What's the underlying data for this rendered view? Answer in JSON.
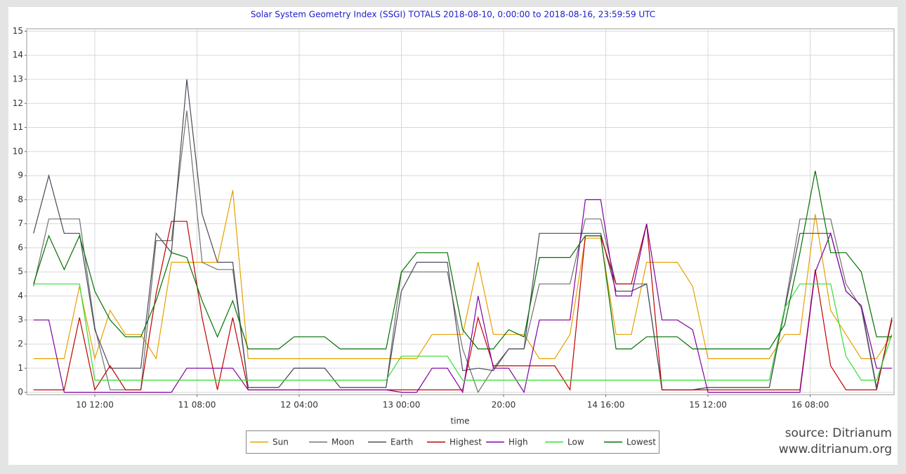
{
  "chart_data": {
    "type": "line",
    "title": "Solar System Geometry Index (SSGI) TOTALS 2018-08-10,  0:00:00 to 2018-08-16, 23:59:59 UTC",
    "x_label": "time",
    "source": [
      "source: Ditrianum",
      "www.ditrianum.org"
    ],
    "x": [
      "10 00:00",
      "10 03:00",
      "10 06:00",
      "10 09:00",
      "10 12:00",
      "10 15:00",
      "10 18:00",
      "10 21:00",
      "11 00:00",
      "11 03:00",
      "11 06:00",
      "11 09:00",
      "11 12:00",
      "11 15:00",
      "11 18:00",
      "11 21:00",
      "12 00:00",
      "12 03:00",
      "12 06:00",
      "12 09:00",
      "12 12:00",
      "12 15:00",
      "12 18:00",
      "12 21:00",
      "13 00:00",
      "13 03:00",
      "13 06:00",
      "13 09:00",
      "13 12:00",
      "13 15:00",
      "13 18:00",
      "13 21:00",
      "14 00:00",
      "14 03:00",
      "14 06:00",
      "14 09:00",
      "14 12:00",
      "14 15:00",
      "14 18:00",
      "14 21:00",
      "15 00:00",
      "15 03:00",
      "15 06:00",
      "15 09:00",
      "15 12:00",
      "15 15:00",
      "15 18:00",
      "15 21:00",
      "16 00:00",
      "16 03:00",
      "16 06:00",
      "16 09:00",
      "16 12:00",
      "16 15:00",
      "16 18:00",
      "16 21:00",
      "17 00:00"
    ],
    "xlim": [
      "09 22:40",
      "17 00:25"
    ],
    "xticks": [
      {
        "value": "10 12:00",
        "label": "10 12:00"
      },
      {
        "value": "11 08:00",
        "label": "11 08:00"
      },
      {
        "value": "12 04:00",
        "label": "12 04:00"
      },
      {
        "value": "13 00:00",
        "label": "13 00:00"
      },
      {
        "value": "13 20:00",
        "label": "20:00"
      },
      {
        "value": "14 16:00",
        "label": "14 16:00"
      },
      {
        "value": "15 12:00",
        "label": "15 12:00"
      },
      {
        "value": "16 08:00",
        "label": "16 08:00"
      }
    ],
    "ylim": [
      -0.1,
      15.1
    ],
    "yticks": [
      0,
      1,
      2,
      3,
      4,
      5,
      6,
      7,
      8,
      9,
      10,
      11,
      12,
      13,
      14,
      15
    ],
    "grid": true,
    "series": [
      {
        "name": "Sun",
        "color": "#e6a000",
        "values": [
          1.4,
          1.4,
          1.4,
          4.4,
          1.4,
          3.4,
          2.4,
          2.4,
          1.4,
          5.4,
          5.4,
          5.4,
          5.4,
          8.4,
          1.4,
          1.4,
          1.4,
          1.4,
          1.4,
          1.4,
          1.4,
          1.4,
          1.4,
          1.4,
          1.4,
          1.4,
          2.4,
          2.4,
          2.4,
          5.4,
          2.4,
          2.4,
          2.4,
          1.4,
          1.4,
          2.4,
          6.4,
          6.4,
          2.4,
          2.4,
          5.4,
          5.4,
          5.4,
          4.4,
          1.4,
          1.4,
          1.4,
          1.4,
          1.4,
          2.4,
          2.4,
          7.4,
          3.4,
          2.4,
          1.4,
          1.4,
          2.4
        ]
      },
      {
        "name": "Moon",
        "color": "#707070",
        "values": [
          4.4,
          7.2,
          7.2,
          7.2,
          2.7,
          0.1,
          0.1,
          0.1,
          6.3,
          6.3,
          11.7,
          5.4,
          5.1,
          5.1,
          0.2,
          0.2,
          0.2,
          1,
          1,
          1,
          0.2,
          0.2,
          0.2,
          0.2,
          5,
          5,
          5,
          5,
          1.8,
          0,
          1,
          1.8,
          1.8,
          4.5,
          4.5,
          4.5,
          7.2,
          7.2,
          4.5,
          4.5,
          4.5,
          0.1,
          0.1,
          0.1,
          0.2,
          0.2,
          0.2,
          0.2,
          0.2,
          3.5,
          7.2,
          7.2,
          7.2,
          4.5,
          3.5,
          0.1,
          3
        ]
      },
      {
        "name": "Earth",
        "color": "#4a4a5a",
        "values": [
          6.6,
          9,
          6.6,
          6.6,
          2.6,
          1,
          1,
          1,
          6.6,
          5.8,
          13,
          7.4,
          5.4,
          5.4,
          0.2,
          0.2,
          0.2,
          1,
          1,
          1,
          0.2,
          0.2,
          0.2,
          0.2,
          4.2,
          5.4,
          5.4,
          5.4,
          0.9,
          1,
          0.9,
          1.8,
          1.8,
          6.6,
          6.6,
          6.6,
          6.6,
          6.6,
          4.2,
          4.2,
          4.5,
          0.1,
          0.1,
          0.1,
          0.2,
          0.2,
          0.2,
          0.2,
          0.2,
          3.4,
          6.6,
          6.6,
          6.6,
          4.2,
          3.6,
          0.2,
          3
        ]
      },
      {
        "name": "Highest",
        "color": "#c00000",
        "values": [
          0.1,
          0.1,
          0.1,
          3.1,
          0.1,
          1.1,
          0.1,
          0.1,
          4.1,
          7.1,
          7.1,
          3.1,
          0.1,
          3.1,
          0.1,
          0.1,
          0.1,
          0.1,
          0.1,
          0.1,
          0.1,
          0.1,
          0.1,
          0.1,
          0.1,
          0.1,
          0.1,
          0.1,
          0.1,
          3.1,
          1.1,
          1.1,
          1.1,
          1.1,
          1.1,
          0.1,
          6.5,
          6.5,
          4.5,
          4.5,
          7,
          0.1,
          0.1,
          0.1,
          0.1,
          0.1,
          0.1,
          0.1,
          0.1,
          0.1,
          0.1,
          5.1,
          1.1,
          0.1,
          0.1,
          0.1,
          3.1
        ]
      },
      {
        "name": "High",
        "color": "#8000a0",
        "values": [
          3,
          3,
          0,
          0,
          0,
          0,
          0,
          0,
          0,
          0,
          1,
          1,
          1,
          1,
          0.1,
          0.1,
          0.1,
          0.1,
          0.1,
          0.1,
          0.1,
          0.1,
          0.1,
          0.1,
          0,
          0,
          1,
          1,
          0,
          4,
          1,
          1,
          0,
          3,
          3,
          3,
          8,
          8,
          4,
          4,
          7,
          3,
          3,
          2.6,
          0,
          0,
          0,
          0,
          0,
          0,
          0,
          5,
          6.6,
          4.2,
          3.6,
          1,
          1
        ]
      },
      {
        "name": "Low",
        "color": "#33dd33",
        "values": [
          4.5,
          4.5,
          4.5,
          4.5,
          0.5,
          0.5,
          0.5,
          0.5,
          0.5,
          0.5,
          0.5,
          0.5,
          0.5,
          0.5,
          0.5,
          0.5,
          0.5,
          0.5,
          0.5,
          0.5,
          0.5,
          0.5,
          0.5,
          0.5,
          1.5,
          1.5,
          1.5,
          1.5,
          0.5,
          0.5,
          0.5,
          0.5,
          0.5,
          0.5,
          0.5,
          0.5,
          0.5,
          0.5,
          0.5,
          0.5,
          0.5,
          0.5,
          0.5,
          0.5,
          0.5,
          0.5,
          0.5,
          0.5,
          0.5,
          3.5,
          4.5,
          4.5,
          4.5,
          1.5,
          0.5,
          0.5,
          2.4
        ]
      },
      {
        "name": "Lowest",
        "color": "#007000",
        "values": [
          4.5,
          6.5,
          5.1,
          6.5,
          4.2,
          3,
          2.3,
          2.3,
          3.8,
          5.8,
          5.6,
          3.8,
          2.3,
          3.8,
          1.8,
          1.8,
          1.8,
          2.3,
          2.3,
          2.3,
          1.8,
          1.8,
          1.8,
          1.8,
          5,
          5.8,
          5.8,
          5.8,
          2.6,
          1.8,
          1.8,
          2.6,
          2.3,
          5.6,
          5.6,
          5.6,
          6.5,
          6.5,
          1.8,
          1.8,
          2.3,
          2.3,
          2.3,
          1.8,
          1.8,
          1.8,
          1.8,
          1.8,
          1.8,
          2.8,
          5.8,
          9.2,
          5.8,
          5.8,
          5,
          2.3,
          2.3
        ]
      }
    ]
  }
}
